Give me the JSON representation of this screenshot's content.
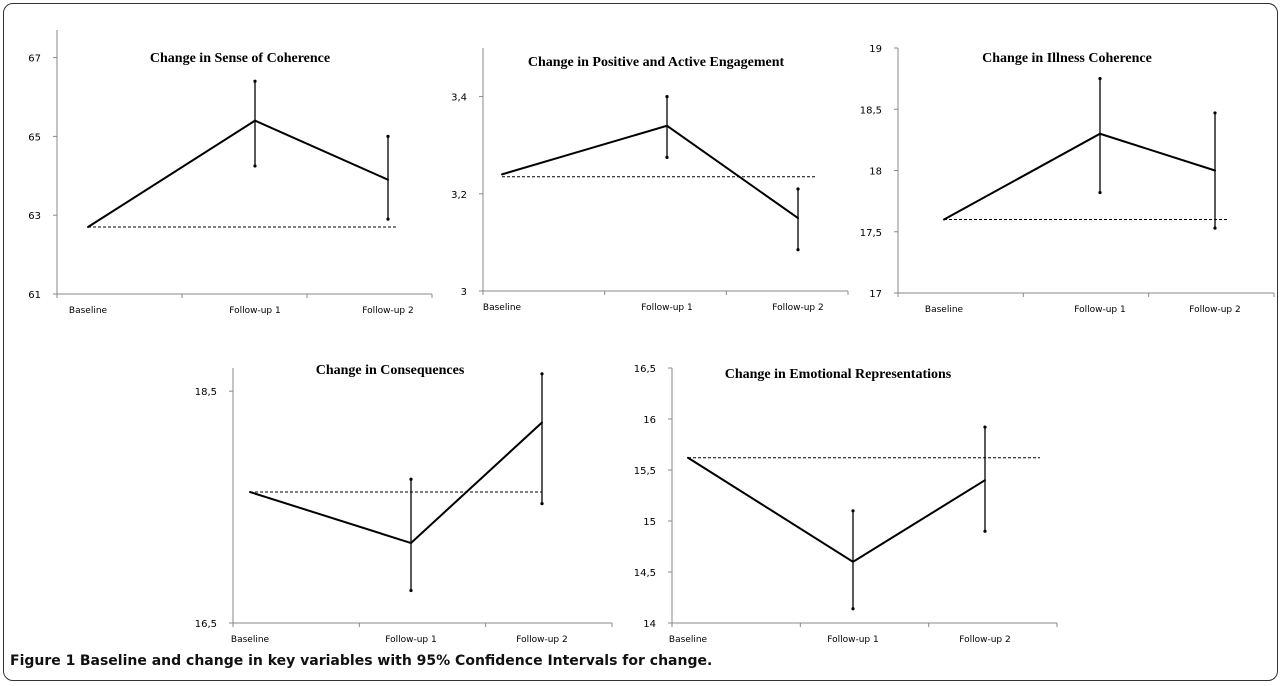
{
  "caption": {
    "label": "Figure 1",
    "text": "Baseline and change in key variables with 95% Confidence Intervals for change."
  },
  "chart_data": [
    {
      "type": "line",
      "title": "Change in Sense of Coherence",
      "categories": [
        "Baseline",
        "Follow-up 1",
        "Follow-up 2"
      ],
      "values": [
        62.7,
        65.4,
        63.9
      ],
      "ci_upper": [
        null,
        66.4,
        65.0
      ],
      "ci_lower": [
        null,
        64.25,
        62.9
      ],
      "baseline_ref": 62.7,
      "ylim": [
        61,
        67.7
      ],
      "yticks": [
        "61",
        "63",
        "65",
        "67"
      ],
      "ytick_values": [
        61,
        63,
        65,
        67
      ],
      "colors": {
        "line": "#000000"
      }
    },
    {
      "type": "line",
      "title": "Change in Positive and Active Engagement",
      "categories": [
        "Baseline",
        "Follow-up 1",
        "Follow-up 2"
      ],
      "values": [
        3.24,
        3.34,
        3.15
      ],
      "ci_upper": [
        null,
        3.4,
        3.21
      ],
      "ci_lower": [
        null,
        3.275,
        3.085
      ],
      "baseline_ref": 3.235,
      "ylim": [
        3.0,
        3.5
      ],
      "yticks": [
        "3",
        "3,2",
        "3,4"
      ],
      "ytick_values": [
        3.0,
        3.2,
        3.4
      ],
      "colors": {
        "line": "#000000"
      }
    },
    {
      "type": "line",
      "title": "Change in Illness Coherence",
      "categories": [
        "Baseline",
        "Follow-up 1",
        "Follow-up 2"
      ],
      "values": [
        17.6,
        18.3,
        18.0
      ],
      "ci_upper": [
        null,
        18.75,
        18.47
      ],
      "ci_lower": [
        null,
        17.82,
        17.53
      ],
      "baseline_ref": 17.6,
      "ylim": [
        17.0,
        19.0
      ],
      "yticks": [
        "17",
        "17,5",
        "18",
        "18,5",
        "19"
      ],
      "ytick_values": [
        17.0,
        17.5,
        18.0,
        18.5,
        19.0
      ],
      "colors": {
        "line": "#000000"
      }
    },
    {
      "type": "line",
      "title": "Change in  Consequences",
      "categories": [
        "Baseline",
        "Follow-up 1",
        "Follow-up 2"
      ],
      "values": [
        17.63,
        17.19,
        18.23
      ],
      "ci_upper": [
        null,
        17.74,
        18.65
      ],
      "ci_lower": [
        null,
        16.78,
        17.53
      ],
      "baseline_ref": 17.63,
      "ylim": [
        16.5,
        18.7
      ],
      "yticks": [
        "16,5",
        "18,5"
      ],
      "ytick_values": [
        16.5,
        18.5
      ],
      "colors": {
        "line": "#000000"
      }
    },
    {
      "type": "line",
      "title": "Change in Emotional Representations",
      "categories": [
        "Baseline",
        "Follow-up 1",
        "Follow-up 2"
      ],
      "values": [
        15.62,
        14.6,
        15.4
      ],
      "ci_upper": [
        null,
        15.1,
        15.92
      ],
      "ci_lower": [
        null,
        14.14,
        14.9
      ],
      "baseline_ref": 15.62,
      "ylim": [
        14.0,
        16.5
      ],
      "yticks": [
        "14",
        "14,5",
        "15",
        "15,5",
        "16",
        "16,5"
      ],
      "ytick_values": [
        14.0,
        14.5,
        15.0,
        15.5,
        16.0,
        16.5
      ],
      "colors": {
        "line": "#000000"
      }
    }
  ]
}
